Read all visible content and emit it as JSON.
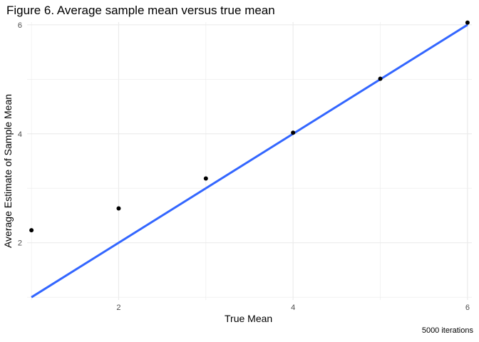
{
  "chart_data": {
    "type": "scatter",
    "title": "Figure 6. Average sample mean versus true mean",
    "caption": "5000 iterations",
    "xlabel": "True Mean",
    "ylabel": "Average Estimate of Sample Mean",
    "xlim": [
      0.95,
      6.05
    ],
    "ylim": [
      0.95,
      6.05
    ],
    "x_ticks": [
      2,
      4,
      6
    ],
    "y_ticks": [
      2,
      4,
      6
    ],
    "grid": true,
    "points": [
      {
        "x": 1,
        "y": 2.23
      },
      {
        "x": 2,
        "y": 2.63
      },
      {
        "x": 3,
        "y": 3.18
      },
      {
        "x": 4,
        "y": 4.02
      },
      {
        "x": 5,
        "y": 5.01
      },
      {
        "x": 6,
        "y": 6.04
      }
    ],
    "reference_line": {
      "x": [
        1,
        6
      ],
      "y": [
        1,
        6
      ]
    },
    "colors": {
      "points": "#000000",
      "line": "#3366FF",
      "grid": "#ebebeb"
    }
  }
}
